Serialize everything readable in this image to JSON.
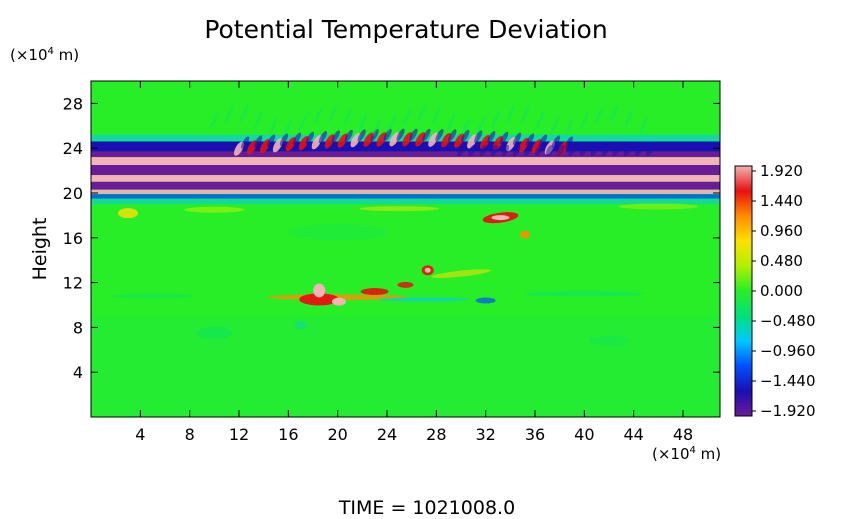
{
  "chart_data": {
    "type": "heatmap",
    "title": "Potential Temperature Deviation",
    "ylabel": "Height",
    "xunit_prefix": "(×10",
    "xunit_exp": "4",
    "xunit_suffix": " m)",
    "yunit_prefix": "(×10",
    "yunit_exp": "4",
    "yunit_suffix": " m)",
    "xlim": [
      0,
      51
    ],
    "ylim": [
      0,
      30
    ],
    "xticks": [
      4,
      8,
      12,
      16,
      20,
      24,
      28,
      32,
      36,
      40,
      44,
      48
    ],
    "yticks": [
      4,
      8,
      12,
      16,
      20,
      24,
      28
    ],
    "colorbar": {
      "range": [
        -1.92,
        1.92
      ],
      "labels": [
        "1.920",
        "1.440",
        "0.960",
        "0.480",
        "0.000",
        "−0.480",
        "−0.960",
        "−1.440",
        "−1.920"
      ],
      "colors": [
        "#6a1b9a",
        "#1a0fb0",
        "#0050ff",
        "#00c8ff",
        "#00e07a",
        "#28ee28",
        "#b0f000",
        "#ffe000",
        "#ff8c00",
        "#e81010",
        "#f2b4b4"
      ]
    },
    "background": "#28ee28",
    "footer_prefix": "TIME  =  ",
    "time": "1021008.0"
  }
}
